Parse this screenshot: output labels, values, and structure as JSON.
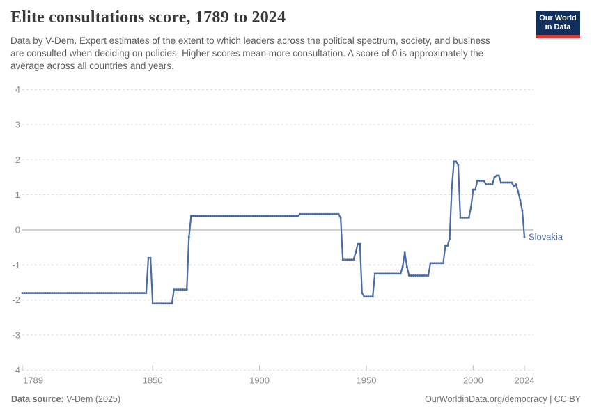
{
  "header": {
    "title": "Elite consultations score, 1789 to 2024",
    "subtitle": "Data by V-Dem. Expert estimates of the extent to which leaders across the political spectrum, society, and business are consulted when deciding on policies. Higher scores mean more consultation. A score of 0 is approximately the average across all countries and years.",
    "logo": {
      "line1": "Our World",
      "line2": "in Data"
    }
  },
  "footer": {
    "source_label": "Data source:",
    "source_value": " V-Dem (2025)",
    "right_text": "OurWorldinData.org/democracy | CC BY"
  },
  "colors": {
    "line": "#4a6ba5",
    "entity_label": "#4a6ba5",
    "grid": "#dcdcdc",
    "zero_line": "#a3a3a3",
    "axis_text": "#8b8b8b",
    "tick": "#b9b9b9",
    "title_text": "#383838",
    "subtitle_text": "#5b5b5b",
    "footer_text": "#6e6e6e",
    "logo_bg": "#11305d",
    "logo_accent": "#d93a34"
  },
  "chart_data": {
    "type": "line",
    "title": "Elite consultations score, 1789 to 2024",
    "xlabel": "",
    "ylabel": "",
    "xlim": [
      1789,
      2024
    ],
    "ylim": [
      -4,
      4
    ],
    "x_ticks": [
      1789,
      1850,
      1900,
      1950,
      2000,
      2024
    ],
    "y_ticks": [
      4,
      3,
      2,
      1,
      0,
      -1,
      -2,
      -3,
      -4
    ],
    "grid": "horizontal dashed gridlines, solid zero line, dashed bottom axis",
    "legend": "inline end-of-line entity label",
    "series": [
      {
        "name": "Slovakia",
        "color": "#4a6ba5",
        "segments_year_start_end_value": [
          [
            1789,
            1847,
            -1.8
          ],
          [
            1848,
            1849,
            -0.8
          ],
          [
            1850,
            1859,
            -2.1
          ],
          [
            1860,
            1866,
            -1.7
          ],
          [
            1867,
            1867,
            -0.2
          ],
          [
            1868,
            1918,
            0.4
          ],
          [
            1919,
            1937,
            0.45
          ],
          [
            1938,
            1938,
            0.35
          ],
          [
            1939,
            1944,
            -0.85
          ],
          [
            1945,
            1945,
            -0.65
          ],
          [
            1946,
            1947,
            -0.4
          ],
          [
            1948,
            1948,
            -1.8
          ],
          [
            1949,
            1953,
            -1.9
          ],
          [
            1954,
            1966,
            -1.25
          ],
          [
            1967,
            1967,
            -1.05
          ],
          [
            1968,
            1968,
            -0.65
          ],
          [
            1969,
            1969,
            -1.05
          ],
          [
            1970,
            1979,
            -1.3
          ],
          [
            1980,
            1986,
            -0.95
          ],
          [
            1987,
            1988,
            -0.45
          ],
          [
            1989,
            1989,
            -0.25
          ],
          [
            1990,
            1990,
            1.2
          ],
          [
            1991,
            1992,
            1.95
          ],
          [
            1993,
            1993,
            1.85
          ],
          [
            1994,
            1998,
            0.35
          ],
          [
            1999,
            1999,
            0.65
          ],
          [
            2000,
            2001,
            1.15
          ],
          [
            2002,
            2005,
            1.4
          ],
          [
            2006,
            2009,
            1.3
          ],
          [
            2010,
            2010,
            1.5
          ],
          [
            2011,
            2012,
            1.55
          ],
          [
            2013,
            2018,
            1.35
          ],
          [
            2019,
            2019,
            1.25
          ],
          [
            2020,
            2020,
            1.3
          ],
          [
            2021,
            2021,
            1.1
          ],
          [
            2022,
            2022,
            0.85
          ],
          [
            2023,
            2023,
            0.55
          ],
          [
            2024,
            2024,
            -0.2
          ]
        ]
      }
    ]
  }
}
